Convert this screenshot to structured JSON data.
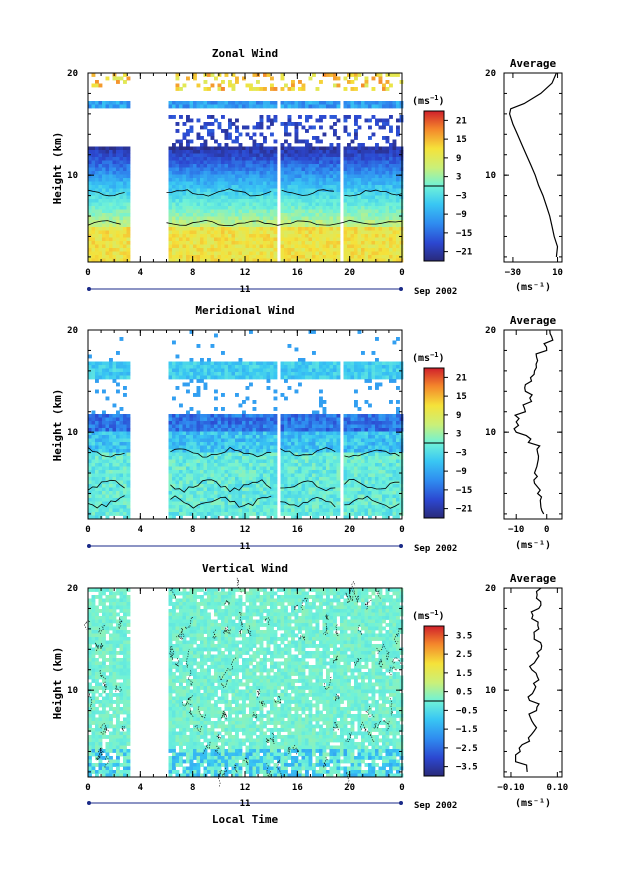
{
  "page": {
    "date_label": "Sep 2002",
    "day_label": "11",
    "xlabel": "Local Time",
    "ylabel": "Height (km)",
    "unit_label": "(ms",
    "unit_sup": "−1",
    "unit_close": ")",
    "average_title": "Average"
  },
  "chart_data": [
    {
      "type": "heatmap",
      "title": "Zonal Wind",
      "ylabel": "Height (km)",
      "x_ticks": [
        "0",
        "4",
        "8",
        "12",
        "16",
        "20",
        "0"
      ],
      "xlim": [
        0,
        24
      ],
      "y_ticks": [
        "20",
        "10"
      ],
      "ylim": [
        1.5,
        20
      ],
      "gaps_hours": [
        [
          3,
          6
        ],
        [
          14.2,
          14.5
        ],
        [
          19.1,
          19.4
        ]
      ],
      "colorbar": {
        "label": "(ms⁻¹)",
        "ticks": [
          "21",
          "15",
          "9",
          "3",
          "−3",
          "−9",
          "−15",
          "−21"
        ],
        "range": [
          -24,
          24
        ]
      },
      "profile": {
        "title": "Average",
        "x_ticks": [
          "−30",
          "10"
        ],
        "xlim": [
          -38,
          14
        ],
        "y_ticks": [
          "20",
          "10"
        ],
        "xlabel": "(ms⁻¹)",
        "height_km": [
          2,
          3,
          4,
          5,
          6,
          7,
          8,
          9,
          10,
          11,
          12,
          13,
          14,
          15,
          16,
          16.5,
          17,
          18,
          19,
          20
        ],
        "values": [
          9,
          10,
          7,
          5,
          3,
          0,
          -3,
          -7,
          -10,
          -14,
          -18,
          -22,
          -26,
          -30,
          -33,
          -32,
          -20,
          -5,
          5,
          9
        ]
      }
    },
    {
      "type": "heatmap",
      "title": "Meridional Wind",
      "ylabel": "Height (km)",
      "x_ticks": [
        "0",
        "4",
        "8",
        "12",
        "16",
        "20",
        "0"
      ],
      "xlim": [
        0,
        24
      ],
      "y_ticks": [
        "20",
        "10"
      ],
      "ylim": [
        1.5,
        20
      ],
      "gaps_hours": [
        [
          3,
          6
        ],
        [
          14.2,
          14.5
        ],
        [
          19.1,
          19.4
        ]
      ],
      "colorbar": {
        "label": "(ms⁻¹)",
        "ticks": [
          "21",
          "15",
          "9",
          "3",
          "−3",
          "−9",
          "−15",
          "−21"
        ],
        "range": [
          -24,
          24
        ]
      },
      "profile": {
        "title": "Average",
        "x_ticks": [
          "−10",
          "0"
        ],
        "xlim": [
          -14,
          5
        ],
        "y_ticks": [
          "20",
          "10"
        ],
        "xlabel": "(ms⁻¹)",
        "height_km": [
          2,
          3,
          4,
          5,
          6,
          7,
          8,
          9,
          10,
          11,
          12,
          13,
          14,
          15,
          16,
          17,
          18,
          19,
          20
        ],
        "values": [
          -1,
          -2,
          -3,
          -4,
          -4,
          -3,
          -3,
          -6,
          -10,
          -10,
          -7,
          -5,
          -7,
          -5,
          -4,
          -3,
          0,
          2,
          1
        ]
      }
    },
    {
      "type": "heatmap",
      "title": "Vertical Wind",
      "ylabel": "Height (km)",
      "x_ticks": [
        "0",
        "4",
        "8",
        "12",
        "16",
        "20",
        "0"
      ],
      "xlim": [
        0,
        24
      ],
      "y_ticks": [
        "20",
        "10"
      ],
      "ylim": [
        1.5,
        20
      ],
      "gaps_hours": [
        [
          3,
          6
        ]
      ],
      "colorbar": {
        "label": "(ms⁻¹)",
        "ticks": [
          "3.5",
          "2.5",
          "1.5",
          "0.5",
          "−0.5",
          "−1.5",
          "−2.5",
          "−3.5"
        ],
        "range": [
          -4,
          4
        ]
      },
      "profile": {
        "title": "Average",
        "x_ticks": [
          "−0.10",
          "0.10"
        ],
        "xlim": [
          -0.13,
          0.12
        ],
        "y_ticks": [
          "20",
          "10"
        ],
        "xlabel": "(ms⁻¹)",
        "height_km": [
          2,
          3,
          4,
          5,
          6,
          7,
          8,
          9,
          10,
          11,
          12,
          13,
          14,
          15,
          16,
          17,
          18,
          19,
          20
        ],
        "values": [
          -0.03,
          -0.08,
          -0.06,
          -0.02,
          0.0,
          -0.01,
          0.01,
          -0.02,
          0.0,
          0.02,
          -0.01,
          0.01,
          0.03,
          0.0,
          0.02,
          -0.01,
          0.02,
          0.01,
          0.03
        ]
      }
    }
  ]
}
